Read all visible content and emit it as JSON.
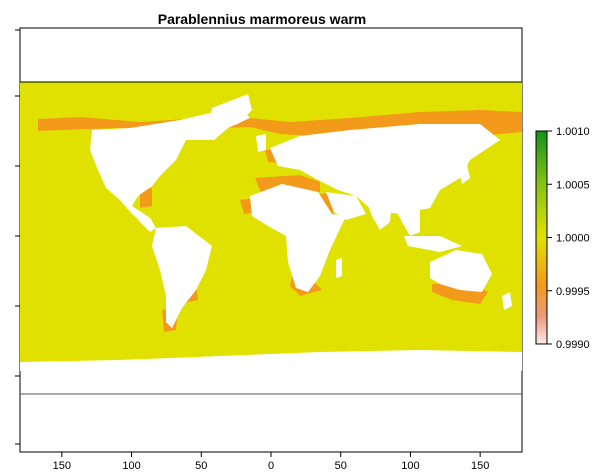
{
  "chart_data": {
    "type": "heatmap",
    "title": "Parablennius marmoreus warm",
    "xlabel": "",
    "ylabel": "",
    "xlim": [
      -180,
      180
    ],
    "ylim": [
      -90,
      90
    ],
    "x_ticks": [
      -150,
      -100,
      -50,
      0,
      50,
      100,
      150
    ],
    "x_tick_labels": [
      "150",
      "100",
      "50",
      "0",
      "50",
      "100",
      "150"
    ],
    "y_ticks": [
      -80,
      -50,
      -25,
      0,
      25,
      50,
      80
    ],
    "map_extent": {
      "lat_top": 65,
      "lat_bottom": -56
    },
    "colors": {
      "ocean": "#e1e100",
      "warm_band": "#f39a1a",
      "land": "#ffffff"
    },
    "legend": {
      "placement": "right",
      "ticks": [
        "1.0010",
        "1.0005",
        "1.0000",
        "0.9995",
        "0.9990"
      ],
      "range": [
        0.999,
        1.001
      ]
    }
  }
}
